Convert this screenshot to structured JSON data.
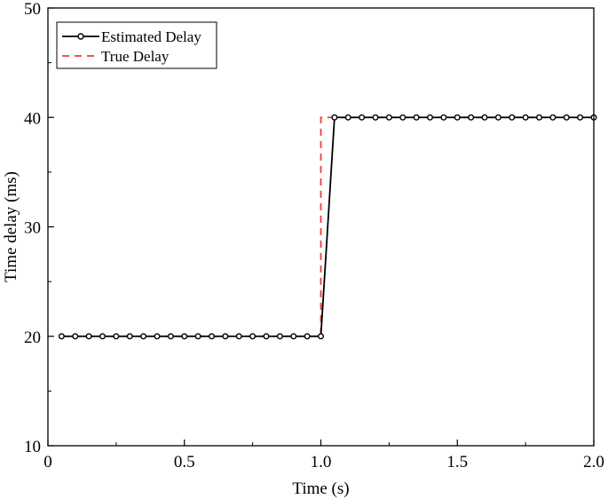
{
  "chart_data": {
    "type": "line",
    "title": "",
    "xlabel": "Time (s)",
    "ylabel": "Time delay (ms)",
    "xlim": [
      0,
      2.0
    ],
    "ylim": [
      10,
      50
    ],
    "x_ticks": [
      0,
      0.5,
      1.0,
      1.5,
      2.0
    ],
    "x_tick_labels": [
      "0",
      "0.5",
      "1.0",
      "1.5",
      "2.0"
    ],
    "y_ticks": [
      10,
      20,
      30,
      40,
      50
    ],
    "y_tick_labels": [
      "10",
      "20",
      "30",
      "40",
      "50"
    ],
    "grid": false,
    "legend_position": "top-left",
    "series": [
      {
        "name": "Estimated Delay",
        "style": "solid line with open circle markers",
        "color": "#000000",
        "x": [
          0.05,
          0.1,
          0.15,
          0.2,
          0.25,
          0.3,
          0.35,
          0.4,
          0.45,
          0.5,
          0.55,
          0.6,
          0.65,
          0.7,
          0.75,
          0.8,
          0.85,
          0.9,
          0.95,
          1.0,
          1.05,
          1.1,
          1.15,
          1.2,
          1.25,
          1.3,
          1.35,
          1.4,
          1.45,
          1.5,
          1.55,
          1.6,
          1.65,
          1.7,
          1.75,
          1.8,
          1.85,
          1.9,
          1.95,
          2.0
        ],
        "y": [
          20,
          20,
          20,
          20,
          20,
          20,
          20,
          20,
          20,
          20,
          20,
          20,
          20,
          20,
          20,
          20,
          20,
          20,
          20,
          20,
          40,
          40,
          40,
          40,
          40,
          40,
          40,
          40,
          40,
          40,
          40,
          40,
          40,
          40,
          40,
          40,
          40,
          40,
          40,
          40
        ]
      },
      {
        "name": "True Delay",
        "style": "dashed line",
        "color": "#e8403a",
        "x": [
          0.05,
          1.0,
          1.0,
          2.0
        ],
        "y": [
          20,
          20,
          40,
          40
        ]
      }
    ]
  }
}
